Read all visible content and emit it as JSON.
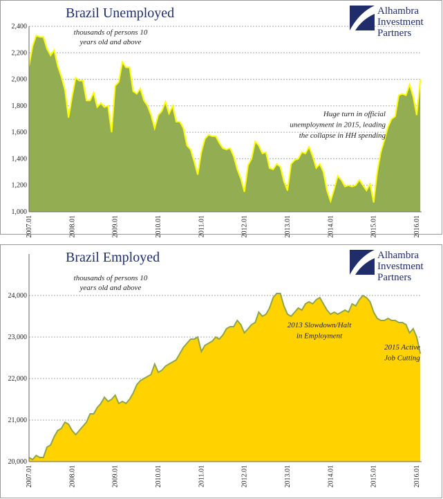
{
  "chart_data": [
    {
      "type": "area",
      "title": "Brazil Unemployed",
      "subtitle": [
        "thousands of persons 10",
        "years old and above"
      ],
      "annotations": [
        [
          "Huge turn in official",
          "unemployment in 2015, leading",
          "the collapse in HH spending"
        ]
      ],
      "logo": [
        "Alhambra",
        "Investment",
        "Partners"
      ],
      "categories": [
        "2007.01",
        null,
        null,
        null,
        null,
        null,
        null,
        null,
        null,
        null,
        null,
        null,
        "2008.01",
        null,
        null,
        null,
        null,
        null,
        null,
        null,
        null,
        null,
        null,
        null,
        "2009.01",
        null,
        null,
        null,
        null,
        null,
        null,
        null,
        null,
        null,
        null,
        null,
        "2010.01",
        null,
        null,
        null,
        null,
        null,
        null,
        null,
        null,
        null,
        null,
        null,
        "2011.01",
        null,
        null,
        null,
        null,
        null,
        null,
        null,
        null,
        null,
        null,
        null,
        "2012.01",
        null,
        null,
        null,
        null,
        null,
        null,
        null,
        null,
        null,
        null,
        null,
        "2013.01",
        null,
        null,
        null,
        null,
        null,
        null,
        null,
        null,
        null,
        null,
        null,
        "2014.01",
        null,
        null,
        null,
        null,
        null,
        null,
        null,
        null,
        null,
        null,
        null,
        "2015.01",
        null,
        null,
        null,
        null,
        null,
        null,
        null,
        null,
        null,
        null,
        null,
        "2016.01",
        null
      ],
      "values": [
        2100,
        2250,
        2330,
        2320,
        2320,
        2230,
        2180,
        2220,
        2100,
        2020,
        1920,
        1710,
        1870,
        2010,
        1990,
        1990,
        1840,
        1840,
        1900,
        1790,
        1820,
        1790,
        1800,
        1600,
        1950,
        1980,
        2130,
        2090,
        2090,
        1910,
        1890,
        1930,
        1840,
        1800,
        1730,
        1630,
        1730,
        1760,
        1830,
        1740,
        1800,
        1680,
        1680,
        1630,
        1500,
        1470,
        1380,
        1280,
        1450,
        1550,
        1580,
        1570,
        1570,
        1520,
        1480,
        1470,
        1480,
        1420,
        1320,
        1250,
        1150,
        1350,
        1400,
        1530,
        1500,
        1440,
        1450,
        1330,
        1320,
        1360,
        1340,
        1230,
        1160,
        1360,
        1390,
        1400,
        1450,
        1440,
        1490,
        1420,
        1330,
        1360,
        1300,
        1160,
        1080,
        1170,
        1270,
        1240,
        1190,
        1200,
        1190,
        1200,
        1240,
        1200,
        1160,
        1210,
        1070,
        1300,
        1450,
        1540,
        1640,
        1700,
        1720,
        1880,
        1890,
        1880,
        1960,
        1870,
        1730,
        2000
      ],
      "color": "#93ad52",
      "line_color": "#ffff00",
      "ylim": [
        1000,
        2400
      ],
      "yticks": [
        {
          "value": 1000,
          "label": "1,000"
        },
        {
          "value": 1200,
          "label": "1,200"
        },
        {
          "value": 1400,
          "label": "1,400"
        },
        {
          "value": 1600,
          "label": "1,600"
        },
        {
          "value": 1800,
          "label": "1,800"
        },
        {
          "value": 2000,
          "label": "2,000"
        },
        {
          "value": 2200,
          "label": "2,200"
        },
        {
          "value": 2400,
          "label": "2,400"
        }
      ],
      "grid": true
    },
    {
      "type": "area",
      "title": "Brazil Employed",
      "subtitle": [
        "thousands of persons 10",
        "years old and above"
      ],
      "annotations": [
        [
          "2013 Slowdown/Halt",
          "in Employment"
        ],
        [
          "2015 Active",
          "Job Cutting"
        ]
      ],
      "logo": [
        "Alhambra",
        "Investment",
        "Partners"
      ],
      "categories": [
        "2007.01",
        null,
        null,
        null,
        null,
        null,
        null,
        null,
        null,
        null,
        null,
        null,
        "2008.01",
        null,
        null,
        null,
        null,
        null,
        null,
        null,
        null,
        null,
        null,
        null,
        "2009.01",
        null,
        null,
        null,
        null,
        null,
        null,
        null,
        null,
        null,
        null,
        null,
        "2010.01",
        null,
        null,
        null,
        null,
        null,
        null,
        null,
        null,
        null,
        null,
        null,
        "2011.01",
        null,
        null,
        null,
        null,
        null,
        null,
        null,
        null,
        null,
        null,
        null,
        "2012.01",
        null,
        null,
        null,
        null,
        null,
        null,
        null,
        null,
        null,
        null,
        null,
        "2013.01",
        null,
        null,
        null,
        null,
        null,
        null,
        null,
        null,
        null,
        null,
        null,
        "2014.01",
        null,
        null,
        null,
        null,
        null,
        null,
        null,
        null,
        null,
        null,
        null,
        "2015.01",
        null,
        null,
        null,
        null,
        null,
        null,
        null,
        null,
        null,
        null,
        null,
        "2016.01",
        null
      ],
      "values": [
        20100,
        20050,
        20150,
        20100,
        20100,
        20350,
        20400,
        20600,
        20750,
        20800,
        20950,
        20900,
        20750,
        20650,
        20750,
        20850,
        20950,
        21150,
        21150,
        21300,
        21400,
        21550,
        21450,
        21500,
        21600,
        21400,
        21450,
        21400,
        21500,
        21650,
        21850,
        21950,
        22000,
        22050,
        22100,
        22350,
        22150,
        22200,
        22300,
        22350,
        22400,
        22450,
        22600,
        22750,
        22850,
        22950,
        22950,
        23000,
        22650,
        22800,
        22850,
        22900,
        23000,
        22950,
        23050,
        23200,
        23250,
        23250,
        23400,
        23300,
        23100,
        23200,
        23300,
        23350,
        23600,
        23500,
        23550,
        23700,
        23950,
        24050,
        24050,
        23750,
        23550,
        23500,
        23600,
        23700,
        23650,
        23800,
        23850,
        23800,
        23900,
        23950,
        23800,
        23650,
        23550,
        23600,
        23550,
        23600,
        23650,
        23600,
        23800,
        23750,
        23900,
        24000,
        23950,
        23850,
        23600,
        23450,
        23400,
        23400,
        23450,
        23400,
        23400,
        23350,
        23350,
        23300,
        23100,
        23200,
        23000,
        22600
      ],
      "color": "#ffd200",
      "line_color": "#8ea54c",
      "ylim": [
        20000,
        25000
      ],
      "yticks": [
        {
          "value": 20000,
          "label": "20,000"
        },
        {
          "value": 21000,
          "label": "21,000"
        },
        {
          "value": 22000,
          "label": "22,000"
        },
        {
          "value": 23000,
          "label": "23,000"
        },
        {
          "value": 24000,
          "label": "24,000"
        }
      ],
      "grid": true
    }
  ]
}
